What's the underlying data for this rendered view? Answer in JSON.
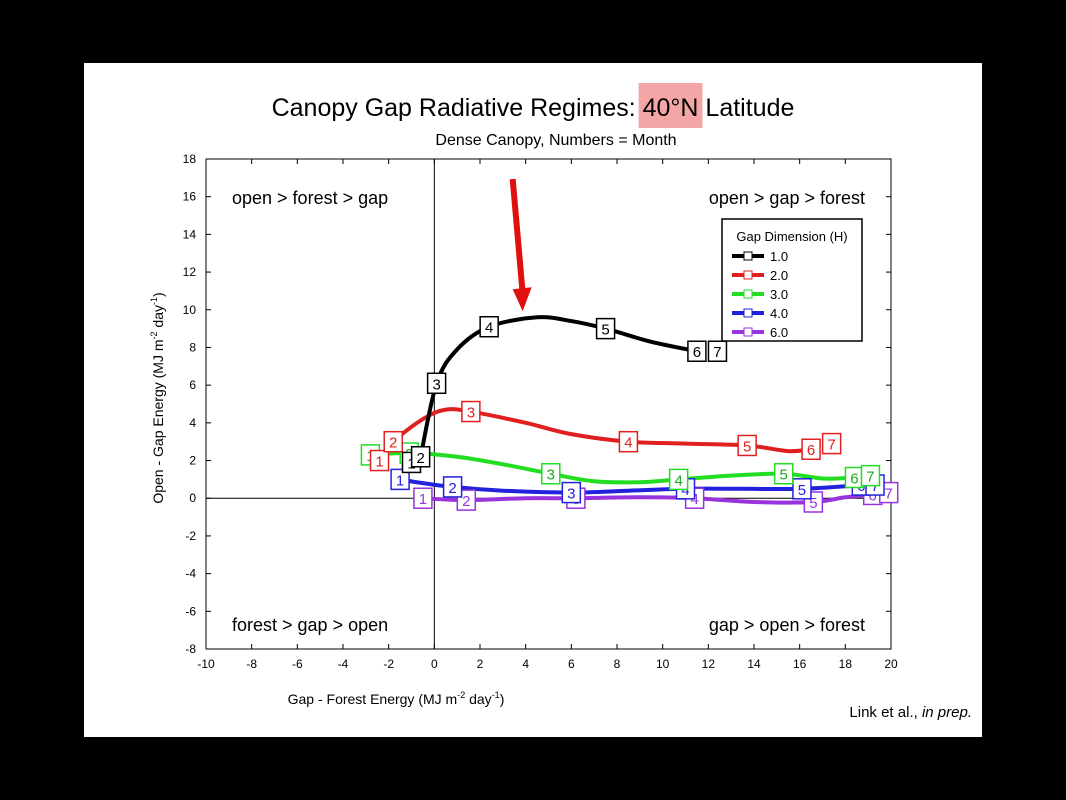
{
  "citation": {
    "authors": "Link et al.,",
    "status": "in prep."
  },
  "chart_data": {
    "type": "line",
    "title_parts": {
      "before": "Canopy Gap Radiative Regimes: ",
      "highlight": "40°N",
      "after": " Latitude"
    },
    "subtitle": "Dense Canopy, Numbers = Month",
    "xlabel": "Gap - Forest Energy (MJ m",
    "xlabel_sup": "-2",
    "xlabel_tail": " day",
    "xlabel_sup2": "-1",
    "xlabel_end": ")",
    "ylabel": "Open - Gap Energy (MJ m",
    "ylabel_sup": "-2",
    "ylabel_tail": " day",
    "ylabel_sup2": "-1",
    "ylabel_end": ")",
    "xlim": [
      -10,
      20
    ],
    "ylim": [
      -8,
      18
    ],
    "xticks": [
      -10,
      -8,
      -6,
      -4,
      -2,
      0,
      2,
      4,
      6,
      8,
      10,
      12,
      14,
      16,
      18,
      20
    ],
    "yticks": [
      -8,
      -6,
      -4,
      -2,
      0,
      2,
      4,
      6,
      8,
      10,
      12,
      14,
      16,
      18
    ],
    "grid": false,
    "quadrant_labels": {
      "top_left": "open > forest > gap",
      "top_right": "open > gap > forest",
      "bottom_left": "forest > gap > open",
      "bottom_right": "gap > open > forest"
    },
    "legend": {
      "title": "Gap Dimension (H)",
      "placement": "top-right"
    },
    "highlight_color": "#f4a6a6",
    "arrow_color": "#e01010",
    "arrow_points_to": {
      "x": 4,
      "y": 9.6
    },
    "series": [
      {
        "name": "1.0",
        "color": "#000000",
        "points": [
          {
            "m": "1",
            "x": -1.0,
            "y": 1.9
          },
          {
            "m": "2",
            "x": -0.6,
            "y": 2.2
          },
          {
            "m": "3",
            "x": 0.1,
            "y": 6.1
          },
          {
            "m": "4",
            "x": 2.4,
            "y": 9.1
          },
          {
            "m": "5",
            "x": 7.5,
            "y": 9.0
          },
          {
            "m": "6",
            "x": 11.5,
            "y": 7.8
          },
          {
            "m": "7",
            "x": 12.4,
            "y": 7.8
          }
        ],
        "curve": [
          [
            -0.6,
            2.2
          ],
          [
            0.1,
            6.1
          ],
          [
            1,
            7.9
          ],
          [
            2.4,
            9.1
          ],
          [
            4.5,
            9.6
          ],
          [
            6,
            9.4
          ],
          [
            7.5,
            9.0
          ],
          [
            9.5,
            8.3
          ],
          [
            11.5,
            7.8
          ]
        ]
      },
      {
        "name": "2.0",
        "color": "#e02020",
        "points": [
          {
            "m": "1",
            "x": -2.4,
            "y": 2.0
          },
          {
            "m": "2",
            "x": -1.8,
            "y": 3.0
          },
          {
            "m": "3",
            "x": 1.6,
            "y": 4.6
          },
          {
            "m": "4",
            "x": 8.5,
            "y": 3.0
          },
          {
            "m": "5",
            "x": 13.7,
            "y": 2.8
          },
          {
            "m": "6",
            "x": 16.5,
            "y": 2.6
          },
          {
            "m": "7",
            "x": 17.4,
            "y": 2.9
          }
        ],
        "curve": [
          [
            -2.4,
            2.0
          ],
          [
            -1.8,
            3.0
          ],
          [
            -0.5,
            4.2
          ],
          [
            0.5,
            4.7
          ],
          [
            1.6,
            4.6
          ],
          [
            4,
            4.0
          ],
          [
            6,
            3.4
          ],
          [
            8.5,
            3.0
          ],
          [
            11,
            2.9
          ],
          [
            13.7,
            2.8
          ],
          [
            15.5,
            2.5
          ],
          [
            16.5,
            2.6
          ]
        ]
      },
      {
        "name": "3.0",
        "color": "#22dd22",
        "points": [
          {
            "m": "1",
            "x": -2.8,
            "y": 2.3
          },
          {
            "m": "2",
            "x": -1.1,
            "y": 2.4
          },
          {
            "m": "3",
            "x": 5.1,
            "y": 1.3
          },
          {
            "m": "4",
            "x": 10.7,
            "y": 1.0
          },
          {
            "m": "5",
            "x": 15.3,
            "y": 1.3
          },
          {
            "m": "6",
            "x": 18.4,
            "y": 1.1
          },
          {
            "m": "7",
            "x": 19.1,
            "y": 1.2
          }
        ],
        "curve": [
          [
            -2.8,
            2.3
          ],
          [
            -1.1,
            2.4
          ],
          [
            1,
            2.2
          ],
          [
            3,
            1.8
          ],
          [
            5.1,
            1.3
          ],
          [
            7,
            0.9
          ],
          [
            9,
            0.85
          ],
          [
            10.7,
            1.0
          ],
          [
            13,
            1.2
          ],
          [
            15.3,
            1.3
          ],
          [
            17,
            1.05
          ],
          [
            18.4,
            1.1
          ]
        ]
      },
      {
        "name": "4.0",
        "color": "#2222dd",
        "points": [
          {
            "m": "1",
            "x": -1.5,
            "y": 1.0
          },
          {
            "m": "2",
            "x": 0.8,
            "y": 0.6
          },
          {
            "m": "3",
            "x": 6.0,
            "y": 0.3
          },
          {
            "m": "4",
            "x": 11.0,
            "y": 0.5
          },
          {
            "m": "5",
            "x": 16.1,
            "y": 0.5
          },
          {
            "m": "6",
            "x": 18.7,
            "y": 0.7
          },
          {
            "m": "7",
            "x": 19.3,
            "y": 0.7
          }
        ],
        "curve": [
          [
            -1.5,
            1.0
          ],
          [
            -0.5,
            0.8
          ],
          [
            0.8,
            0.6
          ],
          [
            3,
            0.4
          ],
          [
            6,
            0.3
          ],
          [
            8.5,
            0.4
          ],
          [
            11,
            0.5
          ],
          [
            13.5,
            0.5
          ],
          [
            16.1,
            0.5
          ],
          [
            18.7,
            0.7
          ]
        ]
      },
      {
        "name": "6.0",
        "color": "#9933dd",
        "points": [
          {
            "m": "1",
            "x": -0.5,
            "y": 0.0
          },
          {
            "m": "2",
            "x": 1.4,
            "y": -0.1
          },
          {
            "m": "3",
            "x": 6.2,
            "y": 0.0
          },
          {
            "m": "4",
            "x": 11.4,
            "y": 0.0
          },
          {
            "m": "5",
            "x": 16.6,
            "y": -0.2
          },
          {
            "m": "6",
            "x": 19.2,
            "y": 0.2
          },
          {
            "m": "7",
            "x": 19.9,
            "y": 0.3
          }
        ],
        "curve": [
          [
            -0.5,
            0.0
          ],
          [
            1.4,
            -0.1
          ],
          [
            4,
            0.0
          ],
          [
            6.2,
            0.0
          ],
          [
            9,
            0.05
          ],
          [
            11.4,
            0.0
          ],
          [
            14,
            -0.2
          ],
          [
            16.6,
            -0.2
          ],
          [
            18,
            0.05
          ],
          [
            19.2,
            0.2
          ]
        ]
      }
    ]
  }
}
